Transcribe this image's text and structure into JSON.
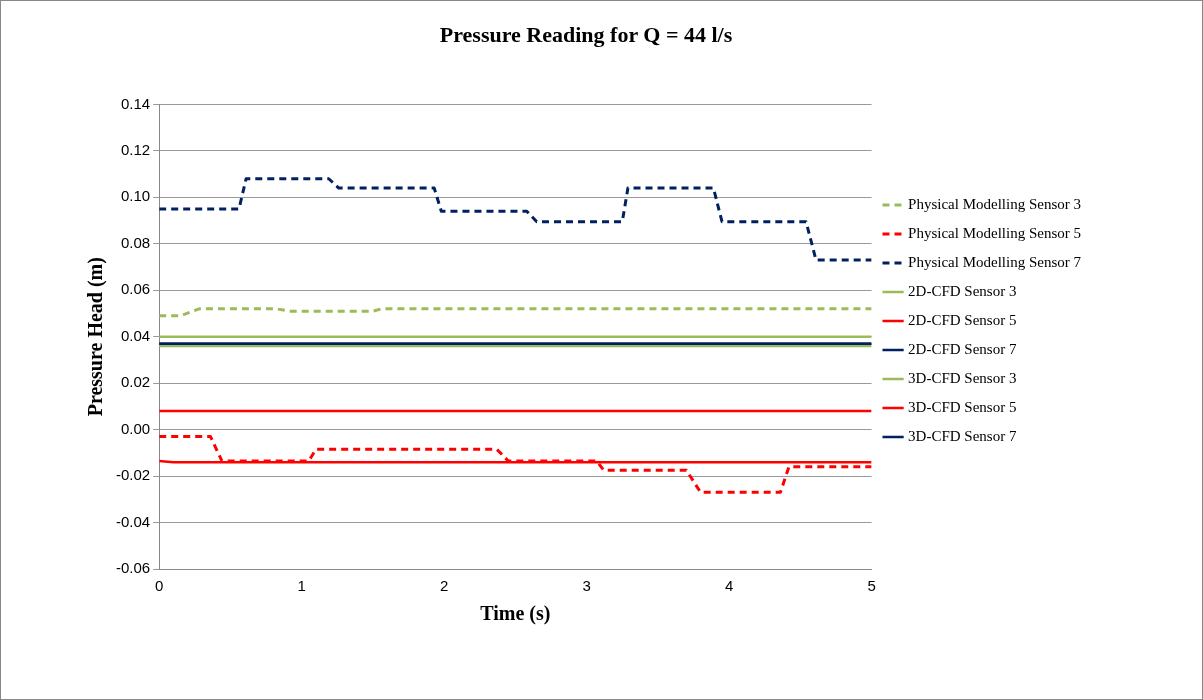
{
  "chart_data": {
    "type": "line",
    "title": "Pressure Reading for Q = 44 l/s",
    "xlabel": "Time (s)",
    "ylabel": "Pressure Head (m)",
    "xlim": [
      0,
      5
    ],
    "xticks": [
      0,
      1,
      2,
      3,
      4,
      5
    ],
    "ylim": [
      -0.06,
      0.14
    ],
    "yticks": [
      {
        "value": -0.06,
        "label": "-0.06"
      },
      {
        "value": -0.04,
        "label": "-0.04"
      },
      {
        "value": -0.02,
        "label": "-0.02"
      },
      {
        "value": 0,
        "label": "0.00"
      },
      {
        "value": 0.02,
        "label": "0.02"
      },
      {
        "value": 0.04,
        "label": "0.04"
      },
      {
        "value": 0.06,
        "label": "0.06"
      },
      {
        "value": 0.08,
        "label": "0.08"
      },
      {
        "value": 0.1,
        "label": "0.10"
      },
      {
        "value": 0.12,
        "label": "0.12"
      },
      {
        "value": 0.14,
        "label": "0.14"
      }
    ],
    "grid": "y",
    "legend": "right",
    "marker": "none",
    "series": [
      {
        "name": "Physical Modelling Sensor 3",
        "color": "#9bbb59",
        "line_style": "dashed",
        "x": [
          0,
          0.15,
          0.28,
          0.82,
          0.92,
          1.5,
          1.56,
          5
        ],
        "values": [
          0.049,
          0.049,
          0.052,
          0.052,
          0.051,
          0.051,
          0.052,
          0.052
        ]
      },
      {
        "name": "Physical Modelling Sensor 5",
        "color": "#ff0000",
        "line_style": "dashed",
        "x": [
          0,
          0.36,
          0.44,
          1.05,
          1.1,
          2.37,
          2.45,
          3.07,
          3.12,
          3.7,
          3.8,
          4.36,
          4.42,
          5
        ],
        "values": [
          -0.003,
          -0.003,
          -0.0135,
          -0.0135,
          -0.0085,
          -0.0085,
          -0.0135,
          -0.0135,
          -0.0175,
          -0.0175,
          -0.027,
          -0.027,
          -0.016,
          -0.016
        ]
      },
      {
        "name": "Physical Modelling Sensor 7",
        "color": "#002060",
        "line_style": "dashed",
        "x": [
          0,
          0.56,
          0.61,
          1.19,
          1.26,
          1.93,
          1.98,
          2.58,
          2.65,
          3.25,
          3.29,
          3.89,
          3.95,
          4.54,
          4.61,
          5
        ],
        "values": [
          0.095,
          0.095,
          0.108,
          0.108,
          0.104,
          0.104,
          0.094,
          0.094,
          0.0895,
          0.0895,
          0.104,
          0.104,
          0.0895,
          0.0895,
          0.073,
          0.073
        ]
      },
      {
        "name": "2D-CFD Sensor 3",
        "color": "#9bbb59",
        "line_style": "solid",
        "x": [
          0,
          5
        ],
        "values": [
          0.04,
          0.04
        ]
      },
      {
        "name": "2D-CFD Sensor 5",
        "color": "#ff0000",
        "line_style": "solid",
        "x": [
          0,
          0.1,
          5
        ],
        "values": [
          -0.0135,
          -0.014,
          -0.014
        ]
      },
      {
        "name": "2D-CFD Sensor 7",
        "color": "#002060",
        "line_style": "solid",
        "x": [
          0,
          5
        ],
        "values": [
          0.037,
          0.037
        ]
      },
      {
        "name": "3D-CFD Sensor 3",
        "color": "#9bbb59",
        "line_style": "solid",
        "x": [
          0,
          5
        ],
        "values": [
          0.036,
          0.036
        ]
      },
      {
        "name": "3D-CFD Sensor 5",
        "color": "#ff0000",
        "line_style": "solid",
        "x": [
          0,
          5
        ],
        "values": [
          0.008,
          0.008
        ]
      },
      {
        "name": "3D-CFD Sensor 7",
        "color": "#002060",
        "line_style": "solid",
        "x": [
          0,
          5
        ],
        "values": [
          0.037,
          0.037
        ]
      }
    ]
  }
}
